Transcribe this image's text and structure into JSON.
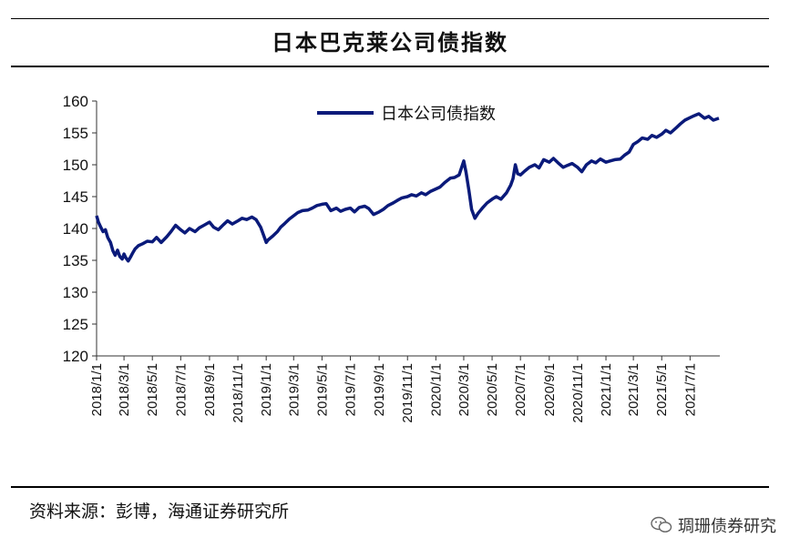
{
  "header": {
    "title": "日本巴克莱公司债指数"
  },
  "footer": {
    "source": "资料来源：彭博，海通证券研究所",
    "watermark": "琱珊债券研究"
  },
  "chart_data": {
    "type": "line",
    "title": "日本巴克莱公司债指数",
    "xlabel": "",
    "ylabel": "",
    "ylim": [
      120,
      160
    ],
    "yticks": [
      120,
      125,
      130,
      135,
      140,
      145,
      150,
      155,
      160
    ],
    "xlim": [
      "2018-01-01",
      "2021-09-03"
    ],
    "xtick_labels": [
      "2018/1/1",
      "2018/3/1",
      "2018/5/1",
      "2018/7/1",
      "2018/9/1",
      "2018/11/1",
      "2019/1/1",
      "2019/3/1",
      "2019/5/1",
      "2019/7/1",
      "2019/9/1",
      "2019/11/1",
      "2020/1/1",
      "2020/3/1",
      "2020/5/1",
      "2020/7/1",
      "2020/9/1",
      "2020/11/1",
      "2021/1/1",
      "2021/3/1",
      "2021/5/1",
      "2021/7/1"
    ],
    "legend": {
      "position": "top-left"
    },
    "line_color": "#0a1a7a",
    "series": [
      {
        "name": "日本公司债指数",
        "points": [
          [
            "2018-01-01",
            142.0
          ],
          [
            "2018-01-05",
            141.0
          ],
          [
            "2018-01-10",
            140.2
          ],
          [
            "2018-01-15",
            139.5
          ],
          [
            "2018-01-20",
            139.8
          ],
          [
            "2018-01-25",
            138.6
          ],
          [
            "2018-01-31",
            137.8
          ],
          [
            "2018-02-05",
            136.5
          ],
          [
            "2018-02-10",
            135.8
          ],
          [
            "2018-02-15",
            136.6
          ],
          [
            "2018-02-20",
            135.6
          ],
          [
            "2018-02-25",
            135.2
          ],
          [
            "2018-03-01",
            136.0
          ],
          [
            "2018-03-05",
            135.4
          ],
          [
            "2018-03-10",
            134.9
          ],
          [
            "2018-03-15",
            135.5
          ],
          [
            "2018-03-20",
            136.2
          ],
          [
            "2018-03-25",
            136.8
          ],
          [
            "2018-04-01",
            137.3
          ],
          [
            "2018-04-10",
            137.6
          ],
          [
            "2018-04-20",
            138.0
          ],
          [
            "2018-05-01",
            137.9
          ],
          [
            "2018-05-10",
            138.6
          ],
          [
            "2018-05-20",
            137.8
          ],
          [
            "2018-06-01",
            138.7
          ],
          [
            "2018-06-10",
            139.5
          ],
          [
            "2018-06-20",
            140.5
          ],
          [
            "2018-07-01",
            139.8
          ],
          [
            "2018-07-10",
            139.3
          ],
          [
            "2018-07-20",
            140.0
          ],
          [
            "2018-08-01",
            139.5
          ],
          [
            "2018-08-10",
            140.1
          ],
          [
            "2018-08-20",
            140.5
          ],
          [
            "2018-09-01",
            141.0
          ],
          [
            "2018-09-10",
            140.2
          ],
          [
            "2018-09-20",
            139.8
          ],
          [
            "2018-10-01",
            140.6
          ],
          [
            "2018-10-10",
            141.2
          ],
          [
            "2018-10-20",
            140.7
          ],
          [
            "2018-11-01",
            141.2
          ],
          [
            "2018-11-10",
            141.6
          ],
          [
            "2018-11-20",
            141.4
          ],
          [
            "2018-12-01",
            141.8
          ],
          [
            "2018-12-10",
            141.4
          ],
          [
            "2018-12-20",
            140.2
          ],
          [
            "2019-01-01",
            137.8
          ],
          [
            "2019-01-05",
            138.2
          ],
          [
            "2019-01-15",
            138.8
          ],
          [
            "2019-01-25",
            139.5
          ],
          [
            "2019-02-01",
            140.2
          ],
          [
            "2019-02-10",
            140.8
          ],
          [
            "2019-02-20",
            141.5
          ],
          [
            "2019-03-01",
            142.0
          ],
          [
            "2019-03-10",
            142.5
          ],
          [
            "2019-03-20",
            142.8
          ],
          [
            "2019-04-01",
            142.9
          ],
          [
            "2019-04-10",
            143.2
          ],
          [
            "2019-04-20",
            143.6
          ],
          [
            "2019-05-01",
            143.8
          ],
          [
            "2019-05-10",
            143.9
          ],
          [
            "2019-05-20",
            142.8
          ],
          [
            "2019-06-01",
            143.2
          ],
          [
            "2019-06-10",
            142.7
          ],
          [
            "2019-06-20",
            143.0
          ],
          [
            "2019-07-01",
            143.2
          ],
          [
            "2019-07-10",
            142.6
          ],
          [
            "2019-07-20",
            143.3
          ],
          [
            "2019-08-01",
            143.5
          ],
          [
            "2019-08-10",
            143.1
          ],
          [
            "2019-08-20",
            142.2
          ],
          [
            "2019-09-01",
            142.6
          ],
          [
            "2019-09-10",
            143.0
          ],
          [
            "2019-09-20",
            143.6
          ],
          [
            "2019-10-01",
            144.0
          ],
          [
            "2019-10-10",
            144.4
          ],
          [
            "2019-10-20",
            144.8
          ],
          [
            "2019-11-01",
            145.0
          ],
          [
            "2019-11-10",
            145.3
          ],
          [
            "2019-11-20",
            145.1
          ],
          [
            "2019-12-01",
            145.6
          ],
          [
            "2019-12-10",
            145.3
          ],
          [
            "2019-12-20",
            145.8
          ],
          [
            "2020-01-01",
            146.2
          ],
          [
            "2020-01-10",
            146.5
          ],
          [
            "2020-01-20",
            147.2
          ],
          [
            "2020-02-01",
            147.9
          ],
          [
            "2020-02-10",
            148.0
          ],
          [
            "2020-02-20",
            148.4
          ],
          [
            "2020-03-01",
            150.6
          ],
          [
            "2020-03-06",
            148.8
          ],
          [
            "2020-03-12",
            146.0
          ],
          [
            "2020-03-18",
            143.0
          ],
          [
            "2020-03-25",
            141.6
          ],
          [
            "2020-04-01",
            142.4
          ],
          [
            "2020-04-10",
            143.2
          ],
          [
            "2020-04-20",
            144.0
          ],
          [
            "2020-05-01",
            144.6
          ],
          [
            "2020-05-10",
            145.0
          ],
          [
            "2020-05-20",
            144.6
          ],
          [
            "2020-06-01",
            145.6
          ],
          [
            "2020-06-10",
            146.8
          ],
          [
            "2020-06-15",
            147.8
          ],
          [
            "2020-06-20",
            150.0
          ],
          [
            "2020-06-25",
            148.6
          ],
          [
            "2020-07-01",
            148.4
          ],
          [
            "2020-07-10",
            149.0
          ],
          [
            "2020-07-20",
            149.6
          ],
          [
            "2020-08-01",
            150.0
          ],
          [
            "2020-08-10",
            149.5
          ],
          [
            "2020-08-20",
            150.8
          ],
          [
            "2020-09-01",
            150.4
          ],
          [
            "2020-09-10",
            151.0
          ],
          [
            "2020-09-20",
            150.3
          ],
          [
            "2020-10-01",
            149.6
          ],
          [
            "2020-10-10",
            149.9
          ],
          [
            "2020-10-20",
            150.2
          ],
          [
            "2020-11-01",
            149.6
          ],
          [
            "2020-11-10",
            148.9
          ],
          [
            "2020-11-20",
            150.0
          ],
          [
            "2020-12-01",
            150.6
          ],
          [
            "2020-12-10",
            150.3
          ],
          [
            "2020-12-20",
            150.9
          ],
          [
            "2021-01-01",
            150.4
          ],
          [
            "2021-01-10",
            150.6
          ],
          [
            "2021-01-20",
            150.8
          ],
          [
            "2021-02-01",
            150.9
          ],
          [
            "2021-02-10",
            151.5
          ],
          [
            "2021-02-20",
            152.0
          ],
          [
            "2021-03-01",
            153.2
          ],
          [
            "2021-03-10",
            153.6
          ],
          [
            "2021-03-20",
            154.2
          ],
          [
            "2021-04-01",
            154.0
          ],
          [
            "2021-04-10",
            154.6
          ],
          [
            "2021-04-20",
            154.3
          ],
          [
            "2021-05-01",
            154.8
          ],
          [
            "2021-05-10",
            155.4
          ],
          [
            "2021-05-20",
            155.0
          ],
          [
            "2021-06-01",
            155.8
          ],
          [
            "2021-06-10",
            156.4
          ],
          [
            "2021-06-20",
            157.0
          ],
          [
            "2021-07-01",
            157.4
          ],
          [
            "2021-07-10",
            157.7
          ],
          [
            "2021-07-20",
            158.0
          ],
          [
            "2021-08-01",
            157.3
          ],
          [
            "2021-08-10",
            157.6
          ],
          [
            "2021-08-20",
            157.0
          ],
          [
            "2021-09-01",
            157.3
          ]
        ]
      }
    ]
  }
}
